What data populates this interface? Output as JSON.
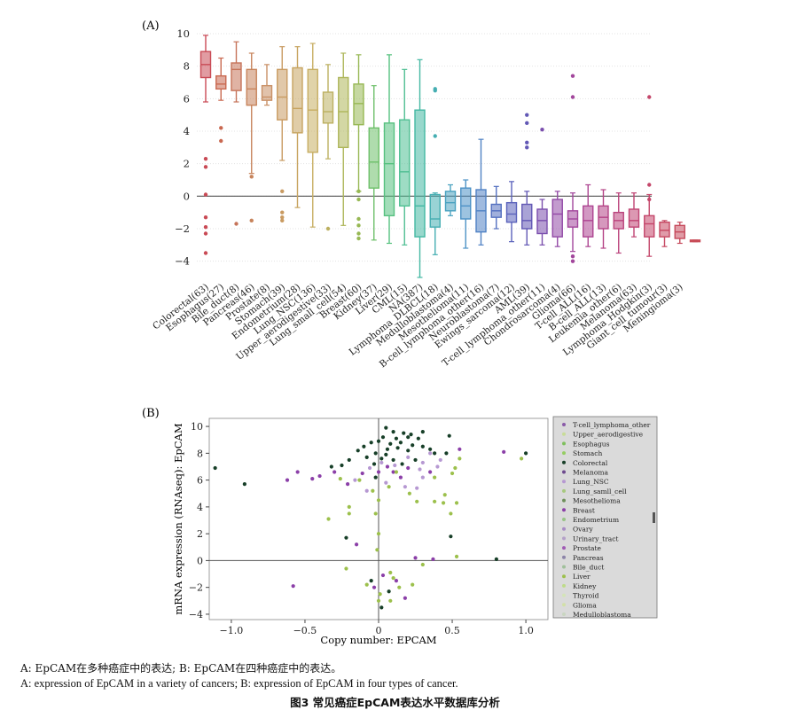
{
  "figure": {
    "title": "图3 常见癌症EpCAM表达水平数据库分析",
    "caption_cn": "A: EpCAM在多种癌症中的表达; B: EpCAM在四种癌症中的表达。",
    "caption_en": "A: expression of EpCAM in a variety of cancers; B: expression of EpCAM in four types of cancer."
  },
  "chart_data": [
    {
      "type": "box",
      "panel_label": "(A)",
      "xlabel": "",
      "ylabel": "",
      "ylim": [
        -5,
        10
      ],
      "yticks": [
        -4,
        -2,
        0,
        2,
        4,
        6,
        8,
        10
      ],
      "grid": "horizontal",
      "reference_line_y": 0,
      "categories": [
        {
          "label": "Colorectal(63)",
          "color": "#c94a55",
          "q1": 7.3,
          "median": 8.1,
          "q3": 8.9,
          "lo": 5.8,
          "hi": 9.9,
          "outliers": [
            2.3,
            1.8,
            0.1,
            -1.3,
            -1.9,
            -2.3,
            -3.5
          ]
        },
        {
          "label": "Esophagus(27)",
          "color": "#c96850",
          "q1": 6.6,
          "median": 6.9,
          "q3": 7.4,
          "lo": 5.9,
          "hi": 8.5,
          "outliers": [
            4.2,
            3.4
          ]
        },
        {
          "label": "Bile_duct(8)",
          "color": "#c6745a",
          "q1": 6.5,
          "median": 7.8,
          "q3": 8.2,
          "lo": 5.8,
          "hi": 9.5,
          "outliers": [
            -1.7
          ]
        },
        {
          "label": "Pancreas(46)",
          "color": "#c7845c",
          "q1": 5.6,
          "median": 6.6,
          "q3": 7.8,
          "lo": 1.4,
          "hi": 8.8,
          "outliers": [
            1.2,
            -1.5
          ]
        },
        {
          "label": "Prostate(8)",
          "color": "#c99066",
          "q1": 5.9,
          "median": 6.1,
          "q3": 6.8,
          "lo": 5.6,
          "hi": 8.1,
          "outliers": []
        },
        {
          "label": "Stomach(39)",
          "color": "#c99b62",
          "q1": 4.7,
          "median": 6.1,
          "q3": 7.8,
          "lo": 2.2,
          "hi": 9.2,
          "outliers": [
            0.3,
            -1.0,
            -1.3,
            -1.5
          ]
        },
        {
          "label": "Endometrium(28)",
          "color": "#c7a460",
          "q1": 3.9,
          "median": 5.4,
          "q3": 7.9,
          "lo": -0.7,
          "hi": 9.2,
          "outliers": []
        },
        {
          "label": "Lung_NSC(136)",
          "color": "#c7ae63",
          "q1": 2.7,
          "median": 5.3,
          "q3": 7.8,
          "lo": -1.9,
          "hi": 9.4,
          "outliers": []
        },
        {
          "label": "Upper_aerodigestive(33)",
          "color": "#bcb060",
          "q1": 4.5,
          "median": 5.2,
          "q3": 6.4,
          "lo": 2.3,
          "hi": 8.1,
          "outliers": [
            -2.0
          ]
        },
        {
          "label": "Lung_small_cell(54)",
          "color": "#aeb65a",
          "q1": 3.0,
          "median": 5.2,
          "q3": 7.3,
          "lo": -1.8,
          "hi": 8.8,
          "outliers": []
        },
        {
          "label": "Breast(60)",
          "color": "#97b854",
          "q1": 4.4,
          "median": 5.7,
          "q3": 6.9,
          "lo": 0.3,
          "hi": 8.7,
          "outliers": [
            0.3,
            -0.2,
            -1.4,
            -1.8,
            -2.3,
            -2.6
          ]
        },
        {
          "label": "Kidney(37)",
          "color": "#6ec06a",
          "q1": 0.5,
          "median": 2.1,
          "q3": 4.2,
          "lo": -2.7,
          "hi": 6.8,
          "outliers": []
        },
        {
          "label": "Liver(29)",
          "color": "#56c17f",
          "q1": -1.2,
          "median": 2.0,
          "q3": 4.5,
          "lo": -2.9,
          "hi": 8.7,
          "outliers": []
        },
        {
          "label": "CML(15)",
          "color": "#4fbf93",
          "q1": -0.6,
          "median": 1.5,
          "q3": 4.7,
          "lo": -3.0,
          "hi": 7.8,
          "outliers": []
        },
        {
          "label": "NA(387)",
          "color": "#44b8a3",
          "q1": -2.5,
          "median": -0.6,
          "q3": 5.3,
          "lo": -5.0,
          "hi": 8.4,
          "outliers": []
        },
        {
          "label": "Lymphoma_DLBCL(18)",
          "color": "#45aeb2",
          "q1": -1.9,
          "median": -1.4,
          "q3": 0.1,
          "lo": -3.6,
          "hi": 0.2,
          "outliers": [
            6.6,
            6.5,
            3.7
          ]
        },
        {
          "label": "Medulloblastoma(4)",
          "color": "#4aa2c0",
          "q1": -0.9,
          "median": -0.4,
          "q3": 0.3,
          "lo": -1.2,
          "hi": 0.7,
          "outliers": []
        },
        {
          "label": "Mesothelioma(11)",
          "color": "#4d92c6",
          "q1": -1.4,
          "median": -0.6,
          "q3": 0.5,
          "lo": -3.2,
          "hi": 1.0,
          "outliers": []
        },
        {
          "label": "B-cell_lymphoma_other(16)",
          "color": "#5082c4",
          "q1": -2.2,
          "median": -0.9,
          "q3": 0.4,
          "lo": -3.0,
          "hi": 3.5,
          "outliers": []
        },
        {
          "label": "Neuroblastoma(7)",
          "color": "#5470c0",
          "q1": -1.3,
          "median": -0.9,
          "q3": -0.5,
          "lo": -2.0,
          "hi": 0.6,
          "outliers": []
        },
        {
          "label": "Ewings_sarcoma(12)",
          "color": "#5a62bb",
          "q1": -1.6,
          "median": -1.1,
          "q3": -0.4,
          "lo": -2.8,
          "hi": 0.9,
          "outliers": []
        },
        {
          "label": "AML(39)",
          "color": "#6258b5",
          "q1": -2.0,
          "median": -1.5,
          "q3": -0.5,
          "lo": -3.0,
          "hi": 0.3,
          "outliers": [
            5.0,
            4.5,
            3.3,
            3.0
          ]
        },
        {
          "label": "T-cell_lymphoma_other(11)",
          "color": "#7a4ead",
          "q1": -2.3,
          "median": -1.5,
          "q3": -0.8,
          "lo": -3.0,
          "hi": -0.2,
          "outliers": [
            4.1
          ]
        },
        {
          "label": "Chondrosarcoma(4)",
          "color": "#9249a6",
          "q1": -2.5,
          "median": -1.1,
          "q3": -0.2,
          "lo": -3.1,
          "hi": 0.3,
          "outliers": []
        },
        {
          "label": "Glioma(66)",
          "color": "#a2469c",
          "q1": -1.9,
          "median": -1.4,
          "q3": -0.9,
          "lo": -3.4,
          "hi": 0.2,
          "outliers": [
            7.4,
            6.1,
            -3.7,
            -4.0
          ]
        },
        {
          "label": "T-cell_ALL(16)",
          "color": "#ad4491",
          "q1": -2.5,
          "median": -1.5,
          "q3": -0.6,
          "lo": -3.1,
          "hi": 0.7,
          "outliers": []
        },
        {
          "label": "B-cell_ALL(13)",
          "color": "#b54386",
          "q1": -2.0,
          "median": -1.3,
          "q3": -0.6,
          "lo": -3.2,
          "hi": 0.4,
          "outliers": []
        },
        {
          "label": "Leukemia_other(6)",
          "color": "#bb437c",
          "q1": -2.0,
          "median": -1.5,
          "q3": -1.0,
          "lo": -3.5,
          "hi": 0.2,
          "outliers": []
        },
        {
          "label": "Melanoma(63)",
          "color": "#c04473",
          "q1": -1.9,
          "median": -1.5,
          "q3": -0.8,
          "lo": -2.5,
          "hi": 0.2,
          "outliers": []
        },
        {
          "label": "Lymphoma_Hodgkin(3)",
          "color": "#c4466a",
          "q1": -2.5,
          "median": -1.7,
          "q3": -1.2,
          "lo": -3.7,
          "hi": 0.1,
          "outliers": [
            6.1,
            0.7,
            -0.2
          ]
        },
        {
          "label": "Giant_cell_tumour(3)",
          "color": "#c64862",
          "q1": -2.5,
          "median": -2.1,
          "q3": -1.6,
          "lo": -3.1,
          "hi": -1.5,
          "outliers": []
        },
        {
          "label": "Meningioma(3)",
          "color": "#c64a5c",
          "q1": -2.6,
          "median": -2.2,
          "q3": -1.8,
          "lo": -2.9,
          "hi": -1.6,
          "outliers": []
        },
        {
          "label": "",
          "color": "#c84c57",
          "q1": -2.8,
          "median": -2.75,
          "q3": -2.7,
          "lo": -2.8,
          "hi": -2.7,
          "outliers": []
        }
      ]
    },
    {
      "type": "scatter",
      "panel_label": "(B)",
      "xlabel": "Copy number: EPCAM",
      "ylabel": "mRNA expression (RNAseq): EpCAM",
      "xlim": [
        -1.15,
        1.15
      ],
      "ylim": [
        -4.4,
        10.6
      ],
      "xticks": [
        -1.0,
        -0.5,
        0,
        0.5,
        1.0
      ],
      "xtick_labels": [
        "−1.0",
        "−0.5",
        "0",
        "0.5",
        "1.0"
      ],
      "yticks": [
        -4,
        -2,
        0,
        2,
        4,
        6,
        8,
        10
      ],
      "ytick_labels": [
        "−4",
        "−2",
        "0",
        "2",
        "4",
        "6",
        "8",
        "10"
      ],
      "grid": false,
      "reference_lines": {
        "x": 0,
        "y": 0
      },
      "legend": {
        "placement": "right",
        "entries": [
          {
            "label": "T-cell_lymphoma_other",
            "color": "#8a5aa8"
          },
          {
            "label": "Upper_aerodigestive",
            "color": "#c8dc98"
          },
          {
            "label": "Esophagus",
            "color": "#7ec05c"
          },
          {
            "label": "Stomach",
            "color": "#95cd62"
          },
          {
            "label": "Colorectal",
            "color": "#173f28"
          },
          {
            "label": "Melanoma",
            "color": "#6d4a8e"
          },
          {
            "label": "Lung_NSC",
            "color": "#b698d2"
          },
          {
            "label": "Lung_samll_cell",
            "color": "#a7c97e"
          },
          {
            "label": "Mesothelioma",
            "color": "#6e8f5a"
          },
          {
            "label": "Breast",
            "color": "#8b3fa8"
          },
          {
            "label": "Endometrium",
            "color": "#98c486"
          },
          {
            "label": "Ovary",
            "color": "#a88cc4"
          },
          {
            "label": "Urinary_tract",
            "color": "#b4a0c8"
          },
          {
            "label": "Prostate",
            "color": "#a05ab4"
          },
          {
            "label": "Pancreas",
            "color": "#8c84a8"
          },
          {
            "label": "Bile_duct",
            "color": "#a0c09a"
          },
          {
            "label": "Liver",
            "color": "#9cc04c"
          },
          {
            "label": "Kidney",
            "color": "#bedb8a"
          },
          {
            "label": "Thyroid",
            "color": "#d4e4b8"
          },
          {
            "label": "Glioma",
            "color": "#d2e0a8"
          },
          {
            "label": "Medulloblastoma",
            "color": "#c9d6c0"
          }
        ]
      },
      "series": [
        {
          "color": "#173f28",
          "points": [
            [
              0.05,
              9.9
            ],
            [
              0.1,
              9.6
            ],
            [
              0.17,
              9.5
            ],
            [
              0.22,
              9.4
            ],
            [
              0.3,
              9.6
            ],
            [
              0.03,
              9.2
            ],
            [
              0.12,
              9.1
            ],
            [
              0.2,
              9.2
            ],
            [
              0.27,
              9.1
            ],
            [
              0.0,
              8.9
            ],
            [
              0.08,
              8.7
            ],
            [
              0.15,
              8.8
            ],
            [
              0.23,
              8.6
            ],
            [
              -0.05,
              8.8
            ],
            [
              0.06,
              8.3
            ],
            [
              0.13,
              8.4
            ],
            [
              0.2,
              8.2
            ],
            [
              0.3,
              8.5
            ],
            [
              -0.1,
              8.5
            ],
            [
              -0.14,
              8.2
            ],
            [
              0.35,
              8.3
            ],
            [
              0.38,
              8.0
            ],
            [
              0.46,
              8.0
            ],
            [
              0.05,
              7.9
            ],
            [
              -0.02,
              8.0
            ],
            [
              0.02,
              7.6
            ],
            [
              0.1,
              7.5
            ],
            [
              -0.08,
              7.7
            ],
            [
              -0.2,
              7.5
            ],
            [
              0.25,
              7.5
            ],
            [
              -0.25,
              7.1
            ],
            [
              -0.32,
              7.0
            ],
            [
              -0.03,
              7.2
            ],
            [
              0.16,
              7.2
            ],
            [
              0.48,
              9.3
            ],
            [
              1.0,
              8.0
            ],
            [
              -1.11,
              6.9
            ],
            [
              -0.91,
              5.7
            ],
            [
              0.49,
              1.8
            ],
            [
              0.8,
              0.1
            ],
            [
              -0.02,
              6.2
            ],
            [
              -0.22,
              1.7
            ],
            [
              0.02,
              -3.5
            ],
            [
              -0.05,
              -1.5
            ],
            [
              0.07,
              -2.3
            ]
          ]
        },
        {
          "color": "#8b3fa8",
          "points": [
            [
              0.1,
              6.6
            ],
            [
              0.2,
              6.9
            ],
            [
              -0.3,
              6.6
            ],
            [
              -0.4,
              6.3
            ],
            [
              0.0,
              6.6
            ],
            [
              0.15,
              6.2
            ],
            [
              -0.45,
              6.1
            ],
            [
              -0.11,
              6.5
            ],
            [
              0.35,
              6.6
            ],
            [
              0.55,
              8.3
            ],
            [
              0.85,
              8.1
            ],
            [
              -0.55,
              6.6
            ],
            [
              -0.62,
              6.0
            ],
            [
              0.12,
              -1.5
            ],
            [
              0.18,
              -2.8
            ],
            [
              0.25,
              0.2
            ],
            [
              0.37,
              0.1
            ],
            [
              -0.58,
              -1.9
            ],
            [
              -0.15,
              1.2
            ],
            [
              -0.03,
              -2.0
            ],
            [
              0.03,
              -1.1
            ],
            [
              -0.21,
              5.7
            ],
            [
              0.06,
              7.0
            ]
          ]
        },
        {
          "color": "#b698d2",
          "points": [
            [
              0.35,
              8.0
            ],
            [
              0.42,
              7.5
            ],
            [
              0.3,
              7.3
            ],
            [
              0.2,
              7.7
            ],
            [
              0.11,
              7.1
            ],
            [
              0.02,
              7.3
            ],
            [
              0.28,
              6.8
            ],
            [
              -0.06,
              6.9
            ],
            [
              0.4,
              7.0
            ],
            [
              0.05,
              5.8
            ],
            [
              0.18,
              5.5
            ],
            [
              -0.08,
              5.2
            ],
            [
              0.26,
              5.4
            ],
            [
              0.3,
              6.2
            ],
            [
              -0.16,
              6.0
            ]
          ]
        },
        {
          "color": "#9cc04c",
          "points": [
            [
              0.55,
              7.6
            ],
            [
              0.52,
              6.9
            ],
            [
              0.5,
              6.5
            ],
            [
              0.97,
              7.6
            ],
            [
              0.45,
              4.9
            ],
            [
              0.53,
              4.3
            ],
            [
              0.26,
              4.4
            ],
            [
              0.38,
              4.4
            ],
            [
              -0.04,
              5.2
            ],
            [
              -0.13,
              6.0
            ],
            [
              0.0,
              4.5
            ],
            [
              -0.2,
              4.0
            ],
            [
              -0.26,
              6.1
            ],
            [
              0.07,
              5.5
            ],
            [
              0.21,
              5.0
            ],
            [
              -0.2,
              3.5
            ],
            [
              -0.34,
              3.1
            ],
            [
              0.3,
              -0.3
            ],
            [
              0.53,
              0.3
            ],
            [
              0.1,
              -1.3
            ],
            [
              -0.22,
              -0.6
            ],
            [
              0.14,
              -2.0
            ],
            [
              -0.08,
              -1.8
            ],
            [
              0.08,
              -0.9
            ],
            [
              0.23,
              -1.8
            ],
            [
              0.01,
              -2.5
            ],
            [
              0.0,
              -3.0
            ],
            [
              0.08,
              -3.0
            ],
            [
              0.44,
              4.3
            ],
            [
              0.49,
              3.5
            ],
            [
              -0.02,
              3.5
            ],
            [
              0.12,
              6.6
            ],
            [
              -0.01,
              0.8
            ],
            [
              0.0,
              2.0
            ],
            [
              0.38,
              6.2
            ]
          ]
        }
      ]
    }
  ]
}
